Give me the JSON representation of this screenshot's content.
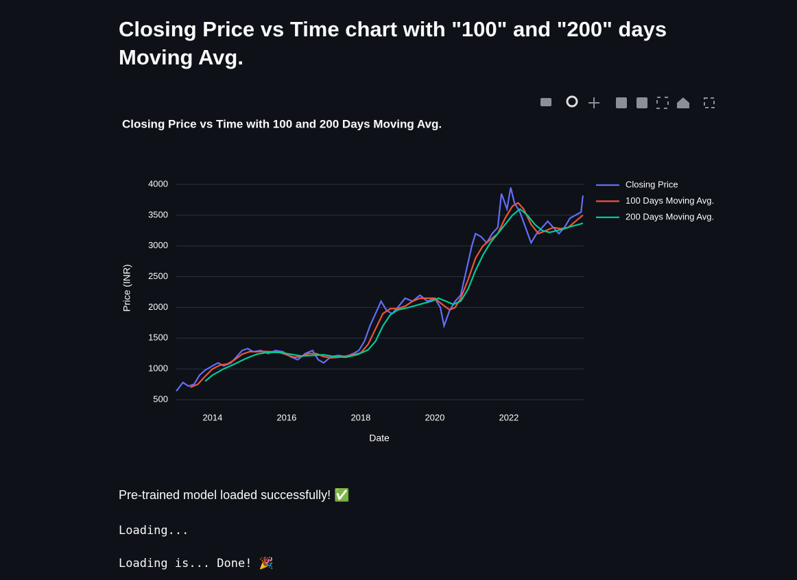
{
  "page": {
    "heading": "Closing Price vs Time chart with \"100\" and \"200\" days Moving Avg.",
    "messages": [
      "Pre-trained model loaded successfully! ✅",
      "Loading...",
      "Loading is... Done! 🎉"
    ]
  },
  "chart_data": {
    "type": "line",
    "title": "Closing Price vs Time with 100 and 200 Days Moving Avg.",
    "x_label": "Date",
    "y_label": "Price (INR)",
    "xlim": [
      2013.02,
      2024.02
    ],
    "xticks": [
      2014,
      2016,
      2018,
      2020,
      2022
    ],
    "ylim": [
      366,
      4156
    ],
    "yticks": [
      500,
      1000,
      1500,
      2000,
      2500,
      3000,
      3500,
      4000
    ],
    "grid": true,
    "legend": "top-right",
    "series": [
      {
        "name": "Closing Price",
        "color": "#636efa",
        "x": [
          2013.02,
          2013.1,
          2013.2,
          2013.35,
          2013.5,
          2013.65,
          2013.8,
          2014.0,
          2014.15,
          2014.3,
          2014.5,
          2014.65,
          2014.8,
          2014.95,
          2015.1,
          2015.3,
          2015.5,
          2015.7,
          2015.9,
          2016.1,
          2016.3,
          2016.5,
          2016.7,
          2016.85,
          2017.0,
          2017.2,
          2017.4,
          2017.6,
          2017.8,
          2017.95,
          2018.1,
          2018.25,
          2018.4,
          2018.55,
          2018.7,
          2018.85,
          2019.0,
          2019.2,
          2019.4,
          2019.6,
          2019.8,
          2020.0,
          2020.15,
          2020.25,
          2020.4,
          2020.55,
          2020.7,
          2020.85,
          2021.0,
          2021.1,
          2021.25,
          2021.4,
          2021.55,
          2021.7,
          2021.8,
          2021.95,
          2022.05,
          2022.15,
          2022.3,
          2022.45,
          2022.6,
          2022.75,
          2022.9,
          2023.05,
          2023.2,
          2023.35,
          2023.5,
          2023.65,
          2023.8,
          2023.95,
          2024.0
        ],
        "values": [
          640,
          700,
          780,
          720,
          750,
          900,
          980,
          1050,
          1100,
          1050,
          1100,
          1200,
          1300,
          1330,
          1280,
          1300,
          1250,
          1300,
          1280,
          1200,
          1150,
          1250,
          1300,
          1150,
          1100,
          1200,
          1220,
          1200,
          1250,
          1300,
          1450,
          1700,
          1900,
          2100,
          1950,
          1900,
          2000,
          2150,
          2100,
          2200,
          2100,
          2150,
          2000,
          1700,
          1950,
          2100,
          2200,
          2600,
          3000,
          3200,
          3150,
          3050,
          3200,
          3300,
          3850,
          3600,
          3950,
          3700,
          3550,
          3300,
          3050,
          3200,
          3300,
          3400,
          3300,
          3200,
          3300,
          3450,
          3500,
          3550,
          3820
        ]
      },
      {
        "name": "100 Days Moving Avg.",
        "color": "#ef553b",
        "x": [
          2013.4,
          2013.6,
          2013.8,
          2014.0,
          2014.2,
          2014.4,
          2014.6,
          2014.8,
          2015.0,
          2015.2,
          2015.4,
          2015.6,
          2015.8,
          2016.0,
          2016.2,
          2016.4,
          2016.6,
          2016.8,
          2017.0,
          2017.2,
          2017.4,
          2017.6,
          2017.8,
          2018.0,
          2018.2,
          2018.4,
          2018.6,
          2018.8,
          2019.0,
          2019.2,
          2019.4,
          2019.6,
          2019.8,
          2020.0,
          2020.2,
          2020.4,
          2020.55,
          2020.7,
          2020.9,
          2021.1,
          2021.3,
          2021.5,
          2021.7,
          2021.9,
          2022.1,
          2022.25,
          2022.4,
          2022.6,
          2022.8,
          2023.0,
          2023.2,
          2023.4,
          2023.6,
          2023.8,
          2024.0
        ],
        "values": [
          700,
          750,
          880,
          1000,
          1060,
          1080,
          1150,
          1240,
          1280,
          1280,
          1285,
          1280,
          1270,
          1230,
          1190,
          1200,
          1250,
          1250,
          1200,
          1180,
          1190,
          1210,
          1230,
          1260,
          1400,
          1650,
          1900,
          1980,
          1980,
          2020,
          2100,
          2150,
          2150,
          2150,
          2050,
          1960,
          2000,
          2150,
          2450,
          2800,
          3000,
          3100,
          3200,
          3450,
          3650,
          3700,
          3600,
          3350,
          3200,
          3250,
          3300,
          3280,
          3300,
          3400,
          3500
        ]
      },
      {
        "name": "200 Days Moving Avg.",
        "color": "#00cc96",
        "x": [
          2013.8,
          2014.0,
          2014.3,
          2014.6,
          2014.9,
          2015.2,
          2015.5,
          2015.8,
          2016.1,
          2016.4,
          2016.7,
          2017.0,
          2017.3,
          2017.6,
          2017.9,
          2018.2,
          2018.4,
          2018.6,
          2018.8,
          2019.0,
          2019.3,
          2019.6,
          2019.9,
          2020.1,
          2020.3,
          2020.5,
          2020.7,
          2020.9,
          2021.1,
          2021.3,
          2021.5,
          2021.7,
          2021.9,
          2022.1,
          2022.3,
          2022.5,
          2022.7,
          2022.9,
          2023.1,
          2023.3,
          2023.5,
          2023.7,
          2023.9,
          2024.0
        ],
        "values": [
          800,
          900,
          1000,
          1080,
          1170,
          1240,
          1270,
          1270,
          1240,
          1210,
          1220,
          1230,
          1200,
          1190,
          1230,
          1310,
          1450,
          1700,
          1880,
          1960,
          2000,
          2050,
          2100,
          2150,
          2100,
          2050,
          2100,
          2300,
          2600,
          2850,
          3050,
          3200,
          3350,
          3500,
          3600,
          3500,
          3350,
          3250,
          3220,
          3250,
          3280,
          3320,
          3350,
          3370
        ]
      }
    ]
  }
}
